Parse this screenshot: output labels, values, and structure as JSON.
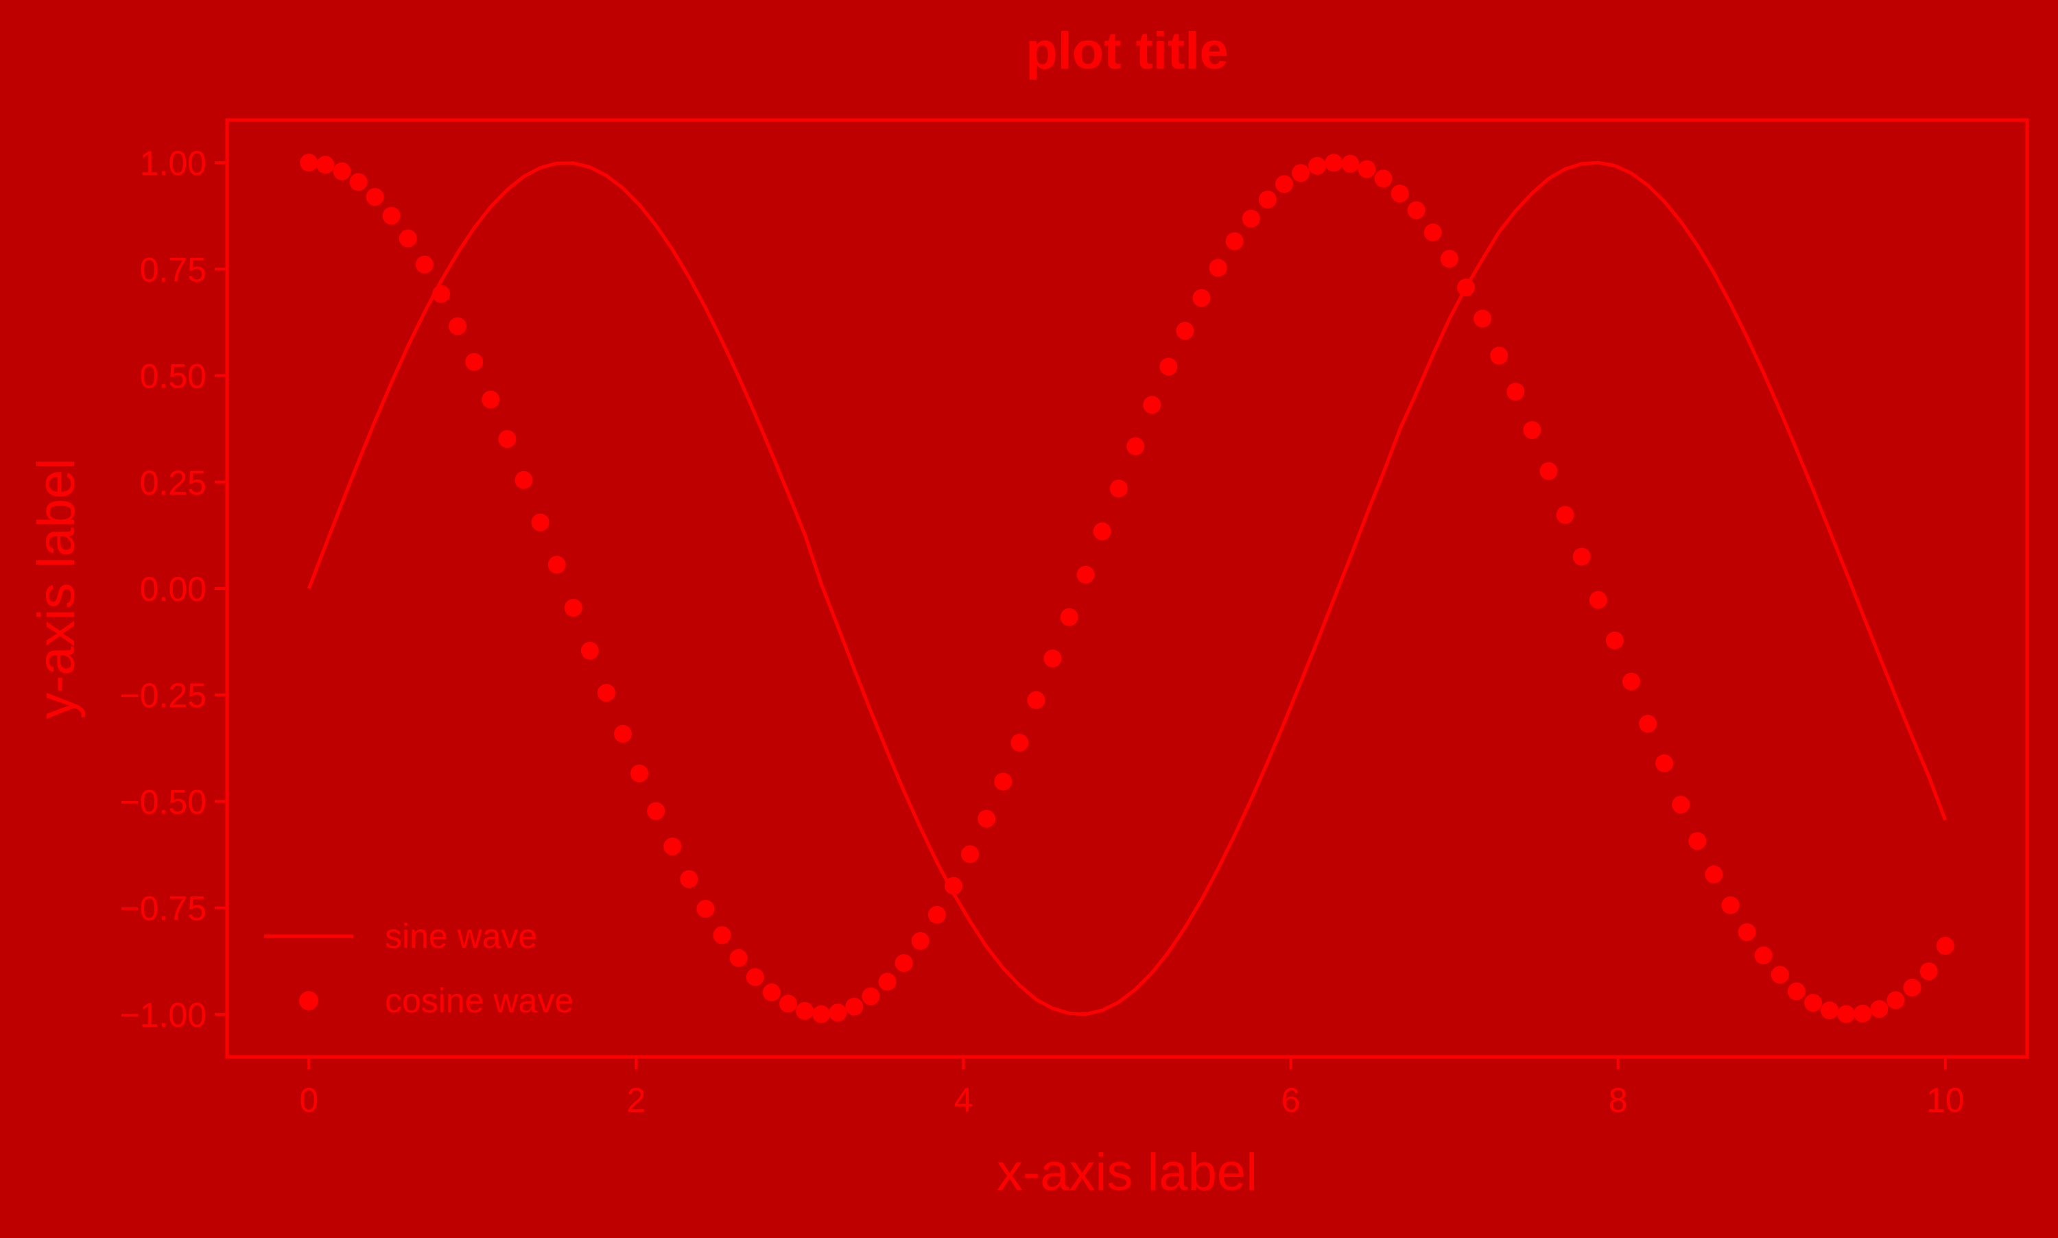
{
  "colors": {
    "background": "#bf0000",
    "foreground": "#ff0000"
  },
  "chart_data": {
    "type": "line",
    "title": "plot title",
    "xlabel": "x-axis label",
    "ylabel": "y-axis label",
    "xlim": [
      -0.5,
      10.5
    ],
    "ylim": [
      -1.1,
      1.1
    ],
    "xticks": [
      0,
      2,
      4,
      6,
      8,
      10
    ],
    "xtick_labels": [
      "0",
      "2",
      "4",
      "6",
      "8",
      "10"
    ],
    "yticks": [
      1.0,
      0.75,
      0.5,
      0.25,
      0.0,
      -0.25,
      -0.5,
      -0.75,
      -1.0
    ],
    "ytick_labels": [
      "1.00",
      "0.75",
      "0.50",
      "0.25",
      "0.00",
      "−0.25",
      "−0.50",
      "−0.75",
      "−1.00"
    ],
    "grid": false,
    "legend_position": "lower-left",
    "x": [
      0.0,
      0.101,
      0.202,
      0.303,
      0.404,
      0.505,
      0.606,
      0.707,
      0.808,
      0.909,
      1.01,
      1.111,
      1.212,
      1.313,
      1.414,
      1.515,
      1.616,
      1.717,
      1.818,
      1.919,
      2.02,
      2.121,
      2.222,
      2.323,
      2.424,
      2.525,
      2.626,
      2.727,
      2.828,
      2.929,
      3.03,
      3.131,
      3.232,
      3.333,
      3.434,
      3.535,
      3.636,
      3.737,
      3.838,
      3.939,
      4.04,
      4.141,
      4.242,
      4.343,
      4.444,
      4.545,
      4.646,
      4.747,
      4.848,
      4.949,
      5.051,
      5.152,
      5.253,
      5.354,
      5.455,
      5.556,
      5.657,
      5.758,
      5.859,
      5.96,
      6.061,
      6.162,
      6.263,
      6.364,
      6.465,
      6.566,
      6.667,
      6.768,
      6.869,
      6.97,
      7.071,
      7.172,
      7.273,
      7.374,
      7.475,
      7.576,
      7.677,
      7.778,
      7.879,
      7.98,
      8.081,
      8.182,
      8.283,
      8.384,
      8.485,
      8.586,
      8.687,
      8.788,
      8.889,
      8.99,
      9.091,
      9.192,
      9.293,
      9.394,
      9.495,
      9.596,
      9.697,
      9.798,
      9.899,
      10.0
    ],
    "series": [
      {
        "name": "sine wave",
        "style": "line",
        "values": [
          0.0,
          0.1008,
          0.2007,
          0.2984,
          0.3931,
          0.4837,
          0.5693,
          0.6491,
          0.7222,
          0.7878,
          0.8468,
          0.8962,
          0.9364,
          0.9673,
          0.9879,
          0.9984,
          0.999,
          0.9893,
          0.9696,
          0.94,
          0.9008,
          0.8525,
          0.7956,
          0.7309,
          0.659,
          0.5808,
          0.4971,
          0.4089,
          0.3172,
          0.2229,
          0.1271,
          0.0108,
          -0.0893,
          -0.1901,
          -0.2885,
          -0.3836,
          -0.4758,
          -0.5616,
          -0.6427,
          -0.7158,
          -0.7814,
          -0.8412,
          -0.8912,
          -0.9321,
          -0.965,
          -0.9859,
          -0.9975,
          -0.9997,
          -0.9906,
          -0.9712,
          -0.9414,
          -0.9023,
          -0.8537,
          -0.7961,
          -0.7311,
          -0.658,
          -0.5793,
          -0.4955,
          -0.4073,
          -0.3152,
          -0.2203,
          -0.124,
          -0.0253,
          0.0728,
          0.1746,
          0.2715,
          0.3742,
          0.4594,
          0.5485,
          0.6333,
          0.7074,
          0.7734,
          0.8373,
          0.8868,
          0.9281,
          0.9624,
          0.985,
          0.9972,
          1.0,
          0.9929,
          0.9752,
          0.9468,
          0.9089,
          0.8616,
          0.8053,
          0.7411,
          0.6683,
          0.5902,
          0.5063,
          0.4179,
          0.3258,
          0.2317,
          0.1351,
          0.0381,
          -0.0602,
          -0.1579,
          -0.2542,
          -0.3493,
          -0.4411,
          -0.544
        ]
      },
      {
        "name": "cosine wave",
        "style": "markers",
        "values": [
          1.0,
          0.9949,
          0.9797,
          0.9544,
          0.9195,
          0.8752,
          0.822,
          0.7606,
          0.6916,
          0.6159,
          0.5319,
          0.4436,
          0.3509,
          0.2547,
          0.1551,
          0.0557,
          -0.0452,
          -0.146,
          -0.245,
          -0.3412,
          -0.4343,
          -0.5227,
          -0.6058,
          -0.6826,
          -0.7522,
          -0.814,
          -0.8677,
          -0.9125,
          -0.9484,
          -0.9749,
          -0.9919,
          -0.9999,
          -0.996,
          -0.9818,
          -0.9575,
          -0.9235,
          -0.8795,
          -0.8276,
          -0.7662,
          -0.6983,
          -0.624,
          -0.5408,
          -0.4535,
          -0.3622,
          -0.2622,
          -0.1642,
          -0.0673,
          0.0324,
          0.1342,
          0.2347,
          0.3341,
          0.4312,
          0.5208,
          0.6051,
          0.6821,
          0.753,
          0.8152,
          0.8686,
          0.9132,
          0.9495,
          0.9757,
          0.9922,
          0.9997,
          0.9973,
          0.9847,
          0.9624,
          0.9274,
          0.8882,
          0.8361,
          0.7741,
          0.7069,
          0.6338,
          0.5467,
          0.462,
          0.3721,
          0.2756,
          0.1727,
          0.0748,
          -0.0271,
          -0.1219,
          -0.2185,
          -0.3178,
          -0.4105,
          -0.5077,
          -0.593,
          -0.6714,
          -0.7438,
          -0.8071,
          -0.8616,
          -0.907,
          -0.9461,
          -0.973,
          -0.9908,
          -0.9993,
          -0.9982,
          -0.9875,
          -0.9668,
          -0.9371,
          -0.899,
          -0.8391
        ]
      }
    ]
  }
}
